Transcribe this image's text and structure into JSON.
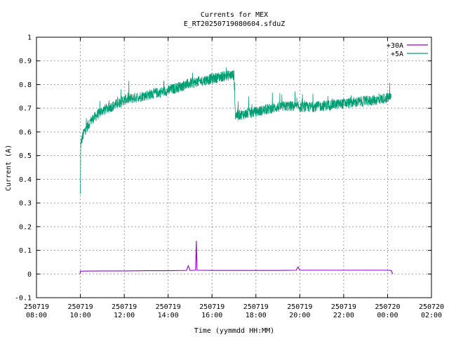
{
  "chart_data": {
    "type": "line",
    "title": "Currents for MEX",
    "subtitle": "E_RT20250719080604.sfduZ",
    "xlabel": "Time (yymmdd HH:MM)",
    "ylabel": "Current (A)",
    "xlim": [
      "250719 08:00",
      "250720 02:00"
    ],
    "ylim": [
      -0.1,
      1
    ],
    "x_ticks": [
      {
        "date": "250719",
        "time": "08:00"
      },
      {
        "date": "250719",
        "time": "10:00"
      },
      {
        "date": "250719",
        "time": "12:00"
      },
      {
        "date": "250719",
        "time": "14:00"
      },
      {
        "date": "250719",
        "time": "16:00"
      },
      {
        "date": "250719",
        "time": "18:00"
      },
      {
        "date": "250719",
        "time": "20:00"
      },
      {
        "date": "250719",
        "time": "22:00"
      },
      {
        "date": "250720",
        "time": "00:00"
      },
      {
        "date": "250720",
        "time": "02:00"
      }
    ],
    "y_ticks": [
      "-0.1",
      "0",
      "0.1",
      "0.2",
      "0.3",
      "0.4",
      "0.5",
      "0.6",
      "0.7",
      "0.8",
      "0.9",
      "1"
    ],
    "grid": true,
    "legend_position": "top-right",
    "series": [
      {
        "name": "+30A",
        "color": "#9400d3",
        "points": [
          [
            "250719 09:59",
            0.0
          ],
          [
            "250719 10:00",
            0.012
          ],
          [
            "250719 11:00",
            0.013
          ],
          [
            "250719 12:00",
            0.013
          ],
          [
            "250719 13:00",
            0.014
          ],
          [
            "250719 14:00",
            0.014
          ],
          [
            "250719 14:50",
            0.015
          ],
          [
            "250719 14:55",
            0.035
          ],
          [
            "250719 15:00",
            0.015
          ],
          [
            "250719 15:15",
            0.016
          ],
          [
            "250719 15:17",
            0.14
          ],
          [
            "250719 15:19",
            0.016
          ],
          [
            "250719 16:00",
            0.015
          ],
          [
            "250719 17:00",
            0.015
          ],
          [
            "250719 18:00",
            0.015
          ],
          [
            "250719 19:00",
            0.015
          ],
          [
            "250719 19:50",
            0.016
          ],
          [
            "250719 19:55",
            0.03
          ],
          [
            "250719 20:00",
            0.016
          ],
          [
            "250719 21:00",
            0.016
          ],
          [
            "250719 22:00",
            0.016
          ],
          [
            "250719 23:00",
            0.016
          ],
          [
            "250719 23:55",
            0.016
          ],
          [
            "250720 00:10",
            0.015
          ],
          [
            "250720 00:14",
            0.0
          ]
        ]
      },
      {
        "name": "+5A",
        "color": "#009e73",
        "points": [
          [
            "250719 10:00",
            0.33
          ],
          [
            "250719 10:01",
            0.55
          ],
          [
            "250719 10:10",
            0.6
          ],
          [
            "250719 10:30",
            0.65
          ],
          [
            "250719 11:00",
            0.69
          ],
          [
            "250719 11:30",
            0.71
          ],
          [
            "250719 12:00",
            0.735
          ],
          [
            "250719 12:30",
            0.745
          ],
          [
            "250719 13:00",
            0.755
          ],
          [
            "250719 13:30",
            0.765
          ],
          [
            "250719 14:00",
            0.775
          ],
          [
            "250719 14:30",
            0.79
          ],
          [
            "250719 15:00",
            0.805
          ],
          [
            "250719 15:30",
            0.815
          ],
          [
            "250719 16:00",
            0.825
          ],
          [
            "250719 16:30",
            0.835
          ],
          [
            "250719 16:50",
            0.84
          ],
          [
            "250719 17:00",
            0.84
          ],
          [
            "250719 17:04",
            0.67
          ],
          [
            "250719 17:30",
            0.675
          ],
          [
            "250719 18:00",
            0.685
          ],
          [
            "250719 18:30",
            0.695
          ],
          [
            "250719 19:00",
            0.705
          ],
          [
            "250719 19:30",
            0.71
          ],
          [
            "250719 20:00",
            0.705
          ],
          [
            "250719 20:30",
            0.705
          ],
          [
            "250719 21:00",
            0.71
          ],
          [
            "250719 21:30",
            0.715
          ],
          [
            "250719 22:00",
            0.72
          ],
          [
            "250719 22:30",
            0.725
          ],
          [
            "250719 23:00",
            0.73
          ],
          [
            "250719 23:30",
            0.735
          ],
          [
            "250720 00:00",
            0.745
          ],
          [
            "250720 00:10",
            0.745
          ]
        ]
      }
    ]
  }
}
